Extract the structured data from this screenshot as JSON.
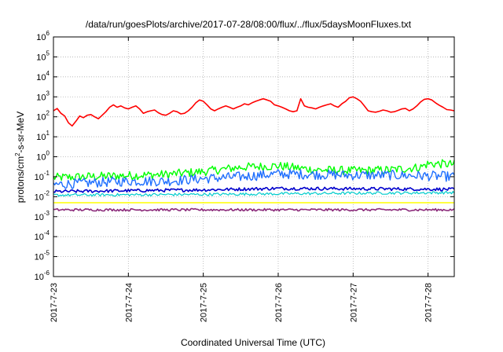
{
  "chart_data": {
    "type": "line",
    "title": "/data/run/goesPlots/archive/2017-07-28/08:00/flux/../flux/5daysMoonFluxes.txt",
    "xlabel": "Coordinated Universal Time (UTC)",
    "ylabel_main": "protons/cm",
    "ylabel_sup": "2",
    "ylabel_tail": "-s-sr-MeV",
    "y_scale": "log",
    "ylim": [
      1e-06,
      1000000.0
    ],
    "y_ticks": [
      {
        "value": 1000000.0,
        "base": "10",
        "exp": "6"
      },
      {
        "value": 100000.0,
        "base": "10",
        "exp": "5"
      },
      {
        "value": 10000.0,
        "base": "10",
        "exp": "4"
      },
      {
        "value": 1000.0,
        "base": "10",
        "exp": "3"
      },
      {
        "value": 100.0,
        "base": "10",
        "exp": "2"
      },
      {
        "value": 10.0,
        "base": "10",
        "exp": "1"
      },
      {
        "value": 1.0,
        "base": "10",
        "exp": "0"
      },
      {
        "value": 0.1,
        "base": "10",
        "exp": "-1"
      },
      {
        "value": 0.01,
        "base": "10",
        "exp": "-2"
      },
      {
        "value": 0.001,
        "base": "10",
        "exp": "-3"
      },
      {
        "value": 0.0001,
        "base": "10",
        "exp": "-4"
      },
      {
        "value": 1e-05,
        "base": "10",
        "exp": "-5"
      },
      {
        "value": 1e-06,
        "base": "10",
        "exp": "-6"
      }
    ],
    "x_unit": "days",
    "xlim": [
      0,
      5.35
    ],
    "x_ticks": [
      {
        "value": 0,
        "label": "2017-7-23"
      },
      {
        "value": 1,
        "label": "2017-7-24"
      },
      {
        "value": 2,
        "label": "2017-7-25"
      },
      {
        "value": 3,
        "label": "2017-7-26"
      },
      {
        "value": 4,
        "label": "2017-7-27"
      },
      {
        "value": 5,
        "label": "2017-7-28"
      }
    ],
    "grid": true,
    "legend": "none",
    "series": [
      {
        "color": "#ff0000",
        "width": 1.6,
        "values": [
          [
            0.0,
            200
          ],
          [
            0.05,
            260
          ],
          [
            0.1,
            150
          ],
          [
            0.15,
            110
          ],
          [
            0.2,
            50
          ],
          [
            0.25,
            35
          ],
          [
            0.3,
            60
          ],
          [
            0.35,
            110
          ],
          [
            0.4,
            90
          ],
          [
            0.45,
            120
          ],
          [
            0.5,
            130
          ],
          [
            0.55,
            100
          ],
          [
            0.6,
            80
          ],
          [
            0.65,
            120
          ],
          [
            0.7,
            180
          ],
          [
            0.75,
            300
          ],
          [
            0.8,
            400
          ],
          [
            0.85,
            300
          ],
          [
            0.9,
            350
          ],
          [
            0.95,
            280
          ],
          [
            1.0,
            250
          ],
          [
            1.05,
            300
          ],
          [
            1.1,
            350
          ],
          [
            1.15,
            250
          ],
          [
            1.2,
            150
          ],
          [
            1.25,
            180
          ],
          [
            1.3,
            200
          ],
          [
            1.35,
            220
          ],
          [
            1.4,
            160
          ],
          [
            1.45,
            130
          ],
          [
            1.5,
            120
          ],
          [
            1.55,
            150
          ],
          [
            1.6,
            200
          ],
          [
            1.65,
            180
          ],
          [
            1.7,
            140
          ],
          [
            1.75,
            150
          ],
          [
            1.8,
            200
          ],
          [
            1.85,
            300
          ],
          [
            1.9,
            500
          ],
          [
            1.95,
            700
          ],
          [
            2.0,
            600
          ],
          [
            2.05,
            400
          ],
          [
            2.1,
            250
          ],
          [
            2.15,
            200
          ],
          [
            2.2,
            250
          ],
          [
            2.25,
            300
          ],
          [
            2.3,
            350
          ],
          [
            2.35,
            300
          ],
          [
            2.4,
            250
          ],
          [
            2.45,
            300
          ],
          [
            2.5,
            350
          ],
          [
            2.55,
            450
          ],
          [
            2.6,
            400
          ],
          [
            2.65,
            500
          ],
          [
            2.7,
            600
          ],
          [
            2.75,
            700
          ],
          [
            2.8,
            800
          ],
          [
            2.85,
            700
          ],
          [
            2.9,
            600
          ],
          [
            2.95,
            400
          ],
          [
            3.0,
            350
          ],
          [
            3.05,
            300
          ],
          [
            3.1,
            250
          ],
          [
            3.15,
            200
          ],
          [
            3.2,
            180
          ],
          [
            3.25,
            200
          ],
          [
            3.3,
            800
          ],
          [
            3.35,
            350
          ],
          [
            3.4,
            300
          ],
          [
            3.45,
            280
          ],
          [
            3.5,
            250
          ],
          [
            3.55,
            300
          ],
          [
            3.6,
            350
          ],
          [
            3.65,
            400
          ],
          [
            3.7,
            450
          ],
          [
            3.75,
            350
          ],
          [
            3.8,
            300
          ],
          [
            3.85,
            450
          ],
          [
            3.9,
            600
          ],
          [
            3.95,
            900
          ],
          [
            4.0,
            1000
          ],
          [
            4.05,
            800
          ],
          [
            4.1,
            600
          ],
          [
            4.15,
            350
          ],
          [
            4.2,
            200
          ],
          [
            4.25,
            180
          ],
          [
            4.3,
            170
          ],
          [
            4.35,
            190
          ],
          [
            4.4,
            220
          ],
          [
            4.45,
            200
          ],
          [
            4.5,
            170
          ],
          [
            4.55,
            180
          ],
          [
            4.6,
            210
          ],
          [
            4.65,
            250
          ],
          [
            4.7,
            260
          ],
          [
            4.75,
            200
          ],
          [
            4.8,
            250
          ],
          [
            4.85,
            350
          ],
          [
            4.9,
            550
          ],
          [
            4.95,
            750
          ],
          [
            5.0,
            800
          ],
          [
            5.05,
            700
          ],
          [
            5.1,
            500
          ],
          [
            5.15,
            380
          ],
          [
            5.2,
            300
          ],
          [
            5.25,
            230
          ],
          [
            5.3,
            220
          ],
          [
            5.35,
            200
          ]
        ]
      },
      {
        "color": "#00ff00",
        "width": 1.4,
        "level": 0.15,
        "jitter": 0.22,
        "trend": [
          [
            0,
            0.09
          ],
          [
            1.5,
            0.13
          ],
          [
            2.0,
            0.18
          ],
          [
            2.5,
            0.3
          ],
          [
            3.0,
            0.35
          ],
          [
            3.5,
            0.22
          ],
          [
            4.0,
            0.2
          ],
          [
            4.5,
            0.22
          ],
          [
            4.9,
            0.3
          ],
          [
            5.0,
            0.45
          ],
          [
            5.35,
            0.42
          ]
        ]
      },
      {
        "color": "#1e6fff",
        "width": 1.4,
        "jitter": 0.25,
        "trend": [
          [
            0,
            0.04
          ],
          [
            0.5,
            0.05
          ],
          [
            1.0,
            0.06
          ],
          [
            1.5,
            0.06
          ],
          [
            2.0,
            0.08
          ],
          [
            2.5,
            0.1
          ],
          [
            3.0,
            0.14
          ],
          [
            3.5,
            0.13
          ],
          [
            4.0,
            0.12
          ],
          [
            4.5,
            0.12
          ],
          [
            5.0,
            0.11
          ],
          [
            5.35,
            0.1
          ]
        ]
      },
      {
        "color": "#0000cc",
        "width": 1.6,
        "jitter": 0.08,
        "trend": [
          [
            0,
            0.018
          ],
          [
            1.0,
            0.02
          ],
          [
            2.0,
            0.022
          ],
          [
            3.0,
            0.026
          ],
          [
            4.0,
            0.025
          ],
          [
            5.0,
            0.024
          ],
          [
            5.35,
            0.023
          ]
        ]
      },
      {
        "color": "#00cccc",
        "width": 1.2,
        "jitter": 0.07,
        "trend": [
          [
            0,
            0.012
          ],
          [
            2.0,
            0.013
          ],
          [
            3.0,
            0.014
          ],
          [
            4.0,
            0.015
          ],
          [
            5.35,
            0.016
          ]
        ]
      },
      {
        "color": "#ffff00",
        "width": 1.6,
        "jitter": 0.0,
        "trend": [
          [
            0,
            0.005
          ],
          [
            5.35,
            0.005
          ]
        ]
      },
      {
        "color": "#8b2a7a",
        "width": 1.6,
        "jitter": 0.06,
        "trend": [
          [
            0,
            0.0022
          ],
          [
            2.0,
            0.0022
          ],
          [
            3.0,
            0.0022
          ],
          [
            5.35,
            0.0022
          ]
        ]
      }
    ]
  }
}
